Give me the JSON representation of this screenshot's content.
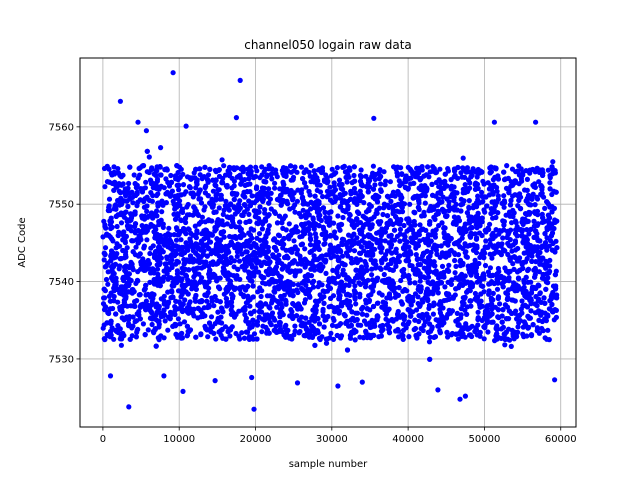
{
  "chart_data": {
    "type": "scatter",
    "title": "channel050 logain raw data",
    "xlabel": "sample number",
    "ylabel": "ADC Code",
    "xlim": [
      -3000,
      62000
    ],
    "ylim": [
      7521.2,
      7568.9
    ],
    "xticks": [
      0,
      10000,
      20000,
      30000,
      40000,
      50000,
      60000
    ],
    "xtick_labels": [
      "0",
      "10000",
      "20000",
      "30000",
      "40000",
      "50000",
      "60000"
    ],
    "yticks": [
      7530,
      7540,
      7550,
      7560
    ],
    "ytick_labels": [
      "7530",
      "7540",
      "7550",
      "7560"
    ],
    "grid": true,
    "marker_color": "#0000ff",
    "series": [
      {
        "x_range": [
          0,
          59500
        ],
        "center": 7543.5,
        "core_band": [
          7530.5,
          7557
        ],
        "outliers": [
          [
            9200,
            7567
          ],
          [
            18000,
            7566
          ],
          [
            2300,
            7563.3
          ],
          [
            17500,
            7561.2
          ],
          [
            35500,
            7561.1
          ],
          [
            4600,
            7560.6
          ],
          [
            51300,
            7560.6
          ],
          [
            56700,
            7560.6
          ],
          [
            10900,
            7560.1
          ],
          [
            5700,
            7559.5
          ],
          [
            3400,
            7523.8
          ],
          [
            19800,
            7523.5
          ],
          [
            10500,
            7525.8
          ],
          [
            46800,
            7524.8
          ],
          [
            47500,
            7525.2
          ],
          [
            43900,
            7526.0
          ],
          [
            30800,
            7526.5
          ],
          [
            25500,
            7526.9
          ],
          [
            34000,
            7527.0
          ],
          [
            8000,
            7527.8
          ],
          [
            19500,
            7527.6
          ],
          [
            59200,
            7527.3
          ],
          [
            14700,
            7527.2
          ],
          [
            1000,
            7527.8
          ]
        ]
      }
    ]
  }
}
